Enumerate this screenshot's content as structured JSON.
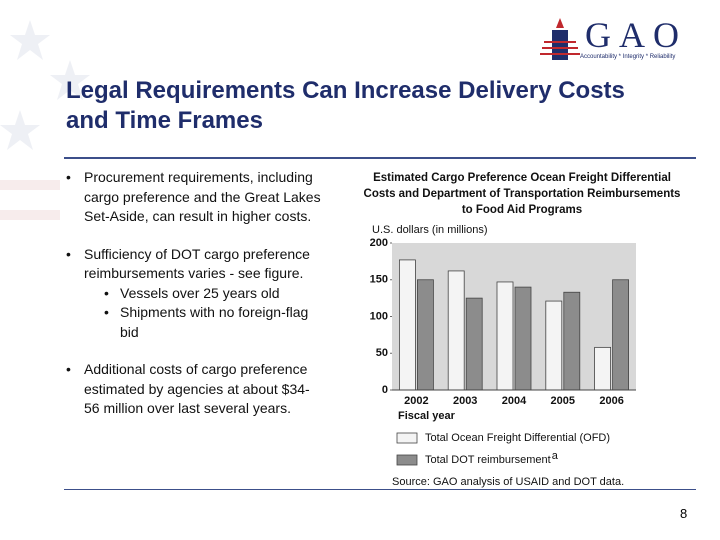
{
  "header": {
    "logo": "GAO",
    "motto": "Accountability * Integrity * Reliability"
  },
  "title": "Legal Requirements Can Increase Delivery Costs and Time Frames",
  "bullets": [
    {
      "text": "Procurement requirements, including cargo preference and the Great Lakes Set-Aside, can result in higher costs.",
      "sub": []
    },
    {
      "text": "Sufficiency of DOT cargo preference reimbursements varies - see figure.",
      "sub": [
        "Vessels over 25 years old",
        "Shipments with no foreign-flag bid"
      ]
    },
    {
      "text": "Additional costs of cargo preference estimated by agencies at about $34-56 million over last several years.",
      "sub": []
    }
  ],
  "page_number": "8",
  "chart_data": {
    "type": "bar",
    "title": "Estimated Cargo Preference Ocean Freight Differential Costs and Department of Transportation Reimbursements to Food Aid Programs",
    "y_label": "U.S. dollars (in millions)",
    "x_label": "Fiscal year",
    "categories": [
      "2002",
      "2003",
      "2004",
      "2005",
      "2006"
    ],
    "series": [
      {
        "name": "Total Ocean Freight Differential (OFD)",
        "color": "#f4f4f4",
        "values": [
          177,
          162,
          147,
          121,
          58
        ]
      },
      {
        "name": "Total DOT reimbursement",
        "color": "#8c8c8c",
        "values": [
          150,
          125,
          140,
          133,
          150
        ]
      }
    ],
    "legend_note_marker": "a",
    "source": "Source: GAO analysis of USAID and DOT data.",
    "ylim": [
      0,
      200
    ],
    "yticks": [
      0,
      50,
      100,
      150,
      200
    ],
    "grid": false
  }
}
